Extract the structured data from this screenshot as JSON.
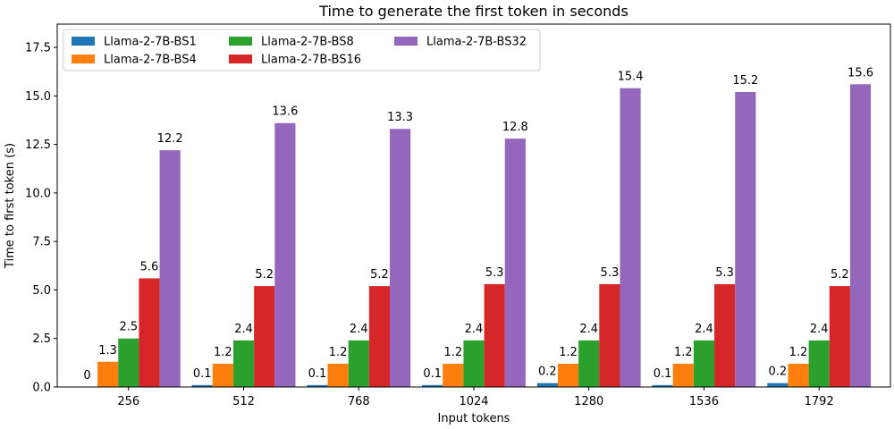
{
  "chart_data": {
    "type": "bar",
    "title": "Time to generate the first token in seconds",
    "xlabel": "Input tokens",
    "ylabel": "Time to first token (s)",
    "ylim": [
      0,
      18.7
    ],
    "yticks": [
      "0.0",
      "2.5",
      "5.0",
      "7.5",
      "10.0",
      "12.5",
      "15.0",
      "17.5"
    ],
    "categories": [
      "256",
      "512",
      "768",
      "1024",
      "1280",
      "1536",
      "1792"
    ],
    "legend_position": "top-left",
    "grid": false,
    "series": [
      {
        "name": "Llama-2-7B-BS1",
        "color": "#1f77b4",
        "values": [
          0.0,
          0.1,
          0.1,
          0.1,
          0.2,
          0.1,
          0.2
        ],
        "labels": [
          "0",
          "0.1",
          "0.1",
          "0.1",
          "0.2",
          "0.1",
          "0.2"
        ]
      },
      {
        "name": "Llama-2-7B-BS4",
        "color": "#ff7f0e",
        "values": [
          1.3,
          1.2,
          1.2,
          1.2,
          1.2,
          1.2,
          1.2
        ],
        "labels": [
          "1.3",
          "1.2",
          "1.2",
          "1.2",
          "1.2",
          "1.2",
          "1.2"
        ]
      },
      {
        "name": "Llama-2-7B-BS8",
        "color": "#2ca02c",
        "values": [
          2.5,
          2.4,
          2.4,
          2.4,
          2.4,
          2.4,
          2.4
        ],
        "labels": [
          "2.5",
          "2.4",
          "2.4",
          "2.4",
          "2.4",
          "2.4",
          "2.4"
        ]
      },
      {
        "name": "Llama-2-7B-BS16",
        "color": "#d62728",
        "values": [
          5.6,
          5.2,
          5.2,
          5.3,
          5.3,
          5.3,
          5.2
        ],
        "labels": [
          "5.6",
          "5.2",
          "5.2",
          "5.3",
          "5.3",
          "5.3",
          "5.2"
        ]
      },
      {
        "name": "Llama-2-7B-BS32",
        "color": "#9467bd",
        "values": [
          12.2,
          13.6,
          13.3,
          12.8,
          15.4,
          15.2,
          15.6
        ],
        "labels": [
          "12.2",
          "13.6",
          "13.3",
          "12.8",
          "15.4",
          "15.2",
          "15.6"
        ]
      }
    ]
  }
}
